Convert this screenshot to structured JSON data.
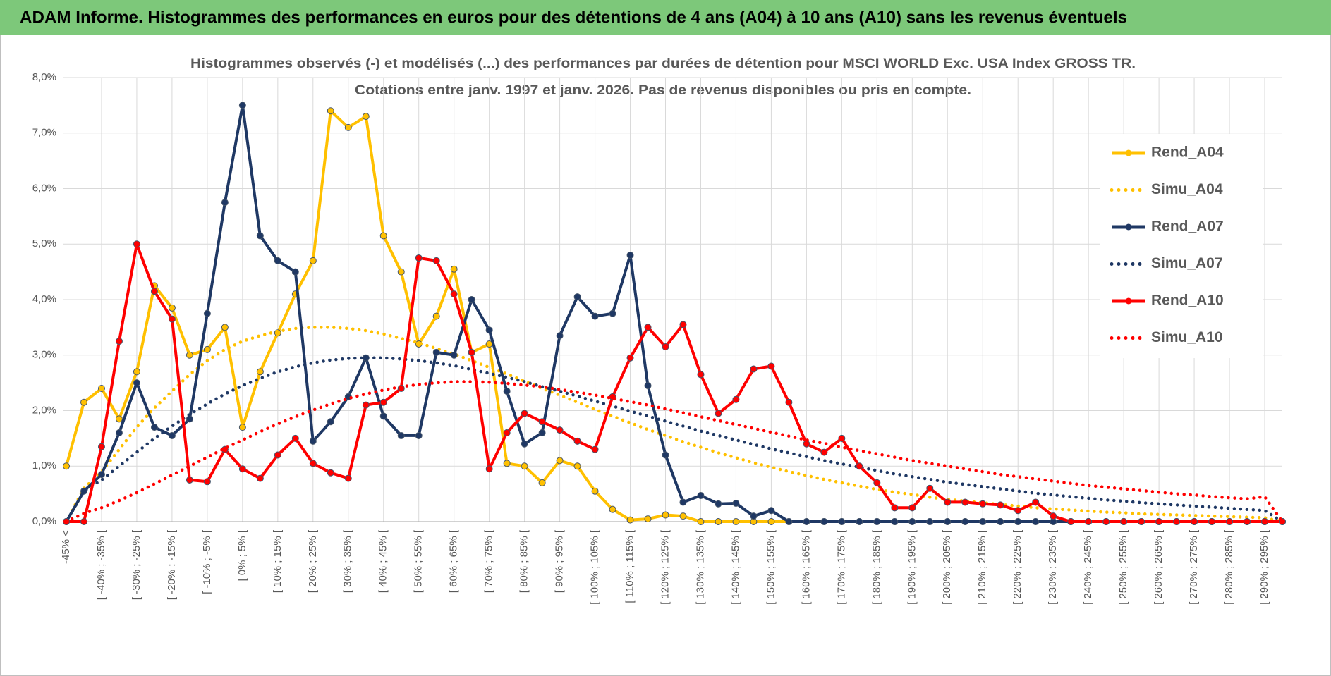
{
  "header": {
    "title": "ADAM Informe. Histogrammes des performances en euros pour des détentions de 4 ans (A04) à 10 ans (A10) sans les revenus éventuels"
  },
  "chart_data": {
    "type": "line",
    "title": "Histogrammes observés (-) et modélisés (...) des performances par durées de détention pour MSCI WORLD Exc. USA Index GROSS TR.",
    "subtitle": "Cotations entre janv. 1997 et janv. 2026. Pas de revenus disponibles ou pris en compte.",
    "categories": [
      "-45% <",
      null,
      "[ -40% ; -35% [",
      null,
      "[ -30% ; -25% [",
      null,
      "[ -20% ; -15% [",
      null,
      "[ -10% ; -5% [",
      null,
      "[ 0% ; 5% [",
      null,
      "[ 10% ; 15% [",
      null,
      "[ 20% ; 25% [",
      null,
      "[ 30% ; 35% [",
      null,
      "[ 40% ; 45% [",
      null,
      "[ 50% ; 55% [",
      null,
      "[ 60% ; 65% [",
      null,
      "[ 70% ; 75% [",
      null,
      "[ 80% ; 85% [",
      null,
      "[ 90% ; 95% [",
      null,
      "[ 100% ; 105% [",
      null,
      "[ 110% ; 115% [",
      null,
      "[ 120% ; 125% [",
      null,
      "[ 130% ; 135% [",
      null,
      "[ 140% ; 145% [",
      null,
      "[ 150% ; 155% [",
      null,
      "[ 160% ; 165% [",
      null,
      "[ 170% ; 175% [",
      null,
      "[ 180% ; 185% [",
      null,
      "[ 190% ; 195% [",
      null,
      "[ 200% ; 205% [",
      null,
      "[ 210% ; 215% [",
      null,
      "[ 220% ; 225% [",
      null,
      "[ 230% ; 235% [",
      null,
      "[ 240% ; 245% [",
      null,
      "[ 250% ; 255% [",
      null,
      "[ 260% ; 265% [",
      null,
      "[ 270% ; 275% [",
      null,
      "[ 280% ; 285% [",
      null,
      "[ 290% ; 295% [",
      null
    ],
    "ylim": [
      0,
      8
    ],
    "yticks": [
      {
        "value": 0,
        "label": "0,0%"
      },
      {
        "value": 1,
        "label": "1,0%"
      },
      {
        "value": 2,
        "label": "2,0%"
      },
      {
        "value": 3,
        "label": "3,0%"
      },
      {
        "value": 4,
        "label": "4,0%"
      },
      {
        "value": 5,
        "label": "5,0%"
      },
      {
        "value": 6,
        "label": "6,0%"
      },
      {
        "value": 7,
        "label": "7,0%"
      },
      {
        "value": 8,
        "label": "8,0%"
      }
    ],
    "grid": true,
    "legend": "upper right",
    "series": [
      {
        "name": "Rend_A04",
        "color": "#FFC000",
        "line_style": "solid",
        "markers": true,
        "values": [
          1.0,
          2.15,
          2.4,
          1.85,
          2.7,
          4.25,
          3.85,
          3.0,
          3.1,
          3.5,
          1.7,
          2.7,
          3.4,
          4.1,
          4.7,
          7.4,
          7.1,
          7.3,
          5.15,
          4.5,
          3.2,
          3.7,
          4.55,
          3.05,
          3.2,
          1.05,
          1.0,
          0.7,
          1.1,
          1.0,
          0.55,
          0.22,
          0.03,
          0.05,
          0.12,
          0.1,
          0,
          0,
          0,
          0,
          0,
          0,
          0,
          0,
          0,
          0,
          0,
          0,
          0,
          0,
          0,
          0,
          0,
          0,
          0,
          0,
          0,
          0,
          0,
          0,
          0,
          0,
          0,
          0,
          0,
          0,
          0,
          0,
          0,
          0
        ]
      },
      {
        "name": "Simu_A04",
        "color": "#FFC000",
        "line_style": "dotted",
        "markers": false,
        "values": [
          0,
          0.6,
          0.9,
          1.3,
          1.7,
          2.05,
          2.35,
          2.65,
          2.9,
          3.1,
          3.25,
          3.35,
          3.43,
          3.48,
          3.5,
          3.5,
          3.48,
          3.44,
          3.38,
          3.3,
          3.22,
          3.12,
          3.02,
          2.9,
          2.78,
          2.66,
          2.53,
          2.4,
          2.28,
          2.15,
          2.02,
          1.9,
          1.78,
          1.66,
          1.55,
          1.44,
          1.34,
          1.24,
          1.15,
          1.06,
          0.98,
          0.9,
          0.83,
          0.76,
          0.7,
          0.64,
          0.58,
          0.53,
          0.49,
          0.44,
          0.4,
          0.37,
          0.34,
          0.31,
          0.28,
          0.25,
          0.23,
          0.21,
          0.19,
          0.17,
          0.16,
          0.14,
          0.13,
          0.12,
          0.11,
          0.1,
          0.09,
          0.08,
          0.07,
          0
        ]
      },
      {
        "name": "Rend_A07",
        "color": "#1F3864",
        "line_style": "solid",
        "markers": true,
        "values": [
          0,
          0.55,
          0.85,
          1.6,
          2.5,
          1.7,
          1.55,
          1.85,
          3.75,
          5.75,
          7.5,
          5.15,
          4.7,
          4.5,
          1.45,
          1.8,
          2.25,
          2.95,
          1.9,
          1.55,
          1.55,
          3.05,
          3.0,
          4.0,
          3.45,
          2.35,
          1.4,
          1.6,
          3.35,
          4.05,
          3.7,
          3.75,
          4.8,
          2.45,
          1.2,
          0.35,
          0.47,
          0.32,
          0.33,
          0.1,
          0.2,
          0,
          0,
          0,
          0,
          0,
          0,
          0,
          0,
          0,
          0,
          0,
          0,
          0,
          0,
          0,
          0,
          0,
          0,
          0,
          0,
          0,
          0,
          0,
          0,
          0,
          0,
          0,
          0,
          0
        ]
      },
      {
        "name": "Simu_A07",
        "color": "#1F3864",
        "line_style": "dotted",
        "markers": false,
        "values": [
          0,
          0.55,
          0.75,
          1.0,
          1.25,
          1.5,
          1.72,
          1.93,
          2.12,
          2.3,
          2.45,
          2.58,
          2.7,
          2.79,
          2.86,
          2.91,
          2.94,
          2.95,
          2.95,
          2.93,
          2.9,
          2.86,
          2.81,
          2.74,
          2.67,
          2.6,
          2.52,
          2.43,
          2.35,
          2.26,
          2.17,
          2.08,
          1.99,
          1.9,
          1.81,
          1.72,
          1.63,
          1.55,
          1.47,
          1.39,
          1.31,
          1.24,
          1.17,
          1.1,
          1.04,
          0.98,
          0.92,
          0.86,
          0.81,
          0.76,
          0.71,
          0.67,
          0.63,
          0.59,
          0.55,
          0.51,
          0.48,
          0.45,
          0.42,
          0.39,
          0.37,
          0.34,
          0.32,
          0.3,
          0.28,
          0.26,
          0.24,
          0.22,
          0.2,
          0
        ]
      },
      {
        "name": "Rend_A10",
        "color": "#FF0000",
        "line_style": "solid",
        "markers": true,
        "values": [
          0,
          0,
          1.35,
          3.25,
          5.0,
          4.15,
          3.65,
          0.75,
          0.72,
          1.3,
          0.95,
          0.78,
          1.2,
          1.5,
          1.05,
          0.88,
          0.78,
          2.1,
          2.15,
          2.4,
          4.75,
          4.7,
          4.1,
          3.05,
          0.95,
          1.6,
          1.95,
          1.8,
          1.65,
          1.45,
          1.3,
          2.25,
          2.95,
          3.5,
          3.15,
          3.55,
          2.65,
          1.95,
          2.2,
          2.75,
          2.8,
          2.15,
          1.4,
          1.25,
          1.5,
          1.0,
          0.7,
          0.25,
          0.25,
          0.6,
          0.35,
          0.35,
          0.32,
          0.3,
          0.2,
          0.35,
          0.1,
          0,
          0,
          0,
          0,
          0,
          0,
          0,
          0,
          0,
          0,
          0,
          0,
          0
        ]
      },
      {
        "name": "Simu_A10",
        "color": "#FF0000",
        "line_style": "dotted",
        "markers": false,
        "values": [
          0,
          0.15,
          0.25,
          0.38,
          0.52,
          0.68,
          0.84,
          1.0,
          1.16,
          1.32,
          1.47,
          1.62,
          1.76,
          1.89,
          2.01,
          2.12,
          2.22,
          2.3,
          2.37,
          2.43,
          2.47,
          2.5,
          2.52,
          2.52,
          2.51,
          2.49,
          2.46,
          2.43,
          2.38,
          2.33,
          2.28,
          2.22,
          2.16,
          2.1,
          2.03,
          1.96,
          1.89,
          1.82,
          1.75,
          1.68,
          1.61,
          1.54,
          1.47,
          1.41,
          1.34,
          1.28,
          1.22,
          1.16,
          1.1,
          1.05,
          1.0,
          0.95,
          0.9,
          0.85,
          0.81,
          0.77,
          0.73,
          0.69,
          0.65,
          0.62,
          0.59,
          0.56,
          0.53,
          0.5,
          0.48,
          0.45,
          0.43,
          0.41,
          0.45,
          0
        ]
      }
    ]
  }
}
